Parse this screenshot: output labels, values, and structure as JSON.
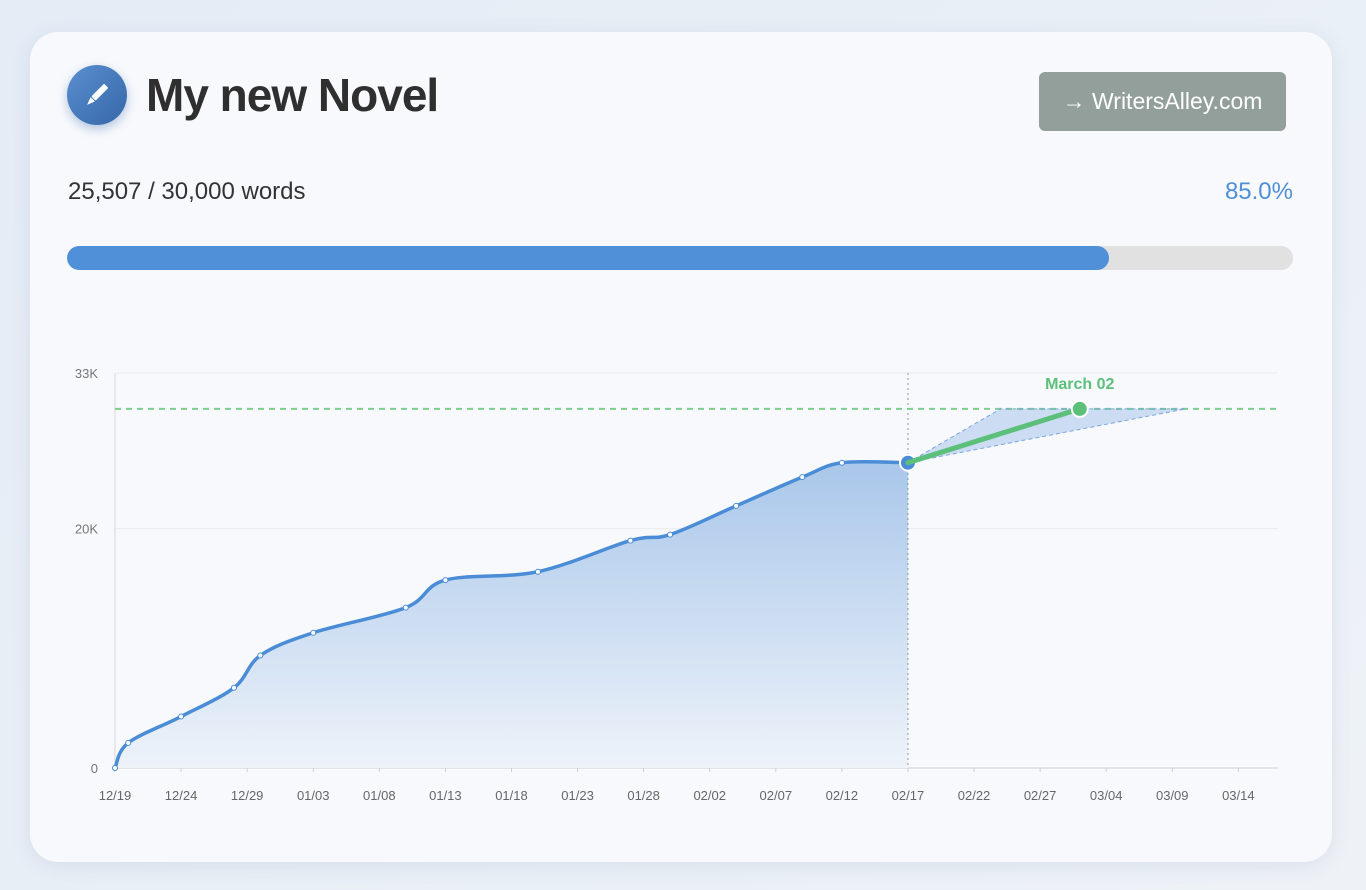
{
  "header": {
    "title": "My new Novel",
    "link": "→ WritersAlley.com"
  },
  "progress": {
    "words": "25,507 / 30,000 words",
    "percent": 85.0,
    "percent_label": "85.0%"
  },
  "chart_data": {
    "type": "area",
    "x": [
      "12/19",
      "12/20",
      "12/24",
      "12/28",
      "12/30",
      "01/03",
      "01/10",
      "01/13",
      "01/20",
      "01/27",
      "01/30",
      "02/04",
      "02/09",
      "02/12",
      "02/17"
    ],
    "values": [
      0,
      2100,
      4300,
      6700,
      9400,
      11300,
      13400,
      15700,
      16400,
      19000,
      19500,
      21900,
      24300,
      25500,
      25507
    ],
    "color": "#4a8cd6",
    "xlim": [
      "12/19",
      "03/17"
    ],
    "xticks": [
      "12/19",
      "12/24",
      "12/29",
      "01/03",
      "01/08",
      "01/13",
      "01/18",
      "01/23",
      "01/28",
      "02/02",
      "02/07",
      "02/12",
      "02/17",
      "02/22",
      "02/27",
      "03/04",
      "03/09",
      "03/14"
    ],
    "ylim": [
      0,
      33000
    ],
    "yticks": [
      0,
      {
        "value": 20000,
        "label": "20K"
      },
      {
        "value": 33000,
        "label": "33K"
      }
    ],
    "grid": true,
    "goal": 30000,
    "goal_color": "#7ccf8f",
    "projection": {
      "x": [
        "02/17",
        "03/02"
      ],
      "values": [
        25507,
        30000
      ],
      "label": "March 02",
      "color": "#5cbf7a"
    },
    "projection_range": {
      "x": [
        "02/17",
        "02/24",
        "03/10"
      ],
      "values": [
        25507,
        30000,
        30000
      ]
    }
  }
}
